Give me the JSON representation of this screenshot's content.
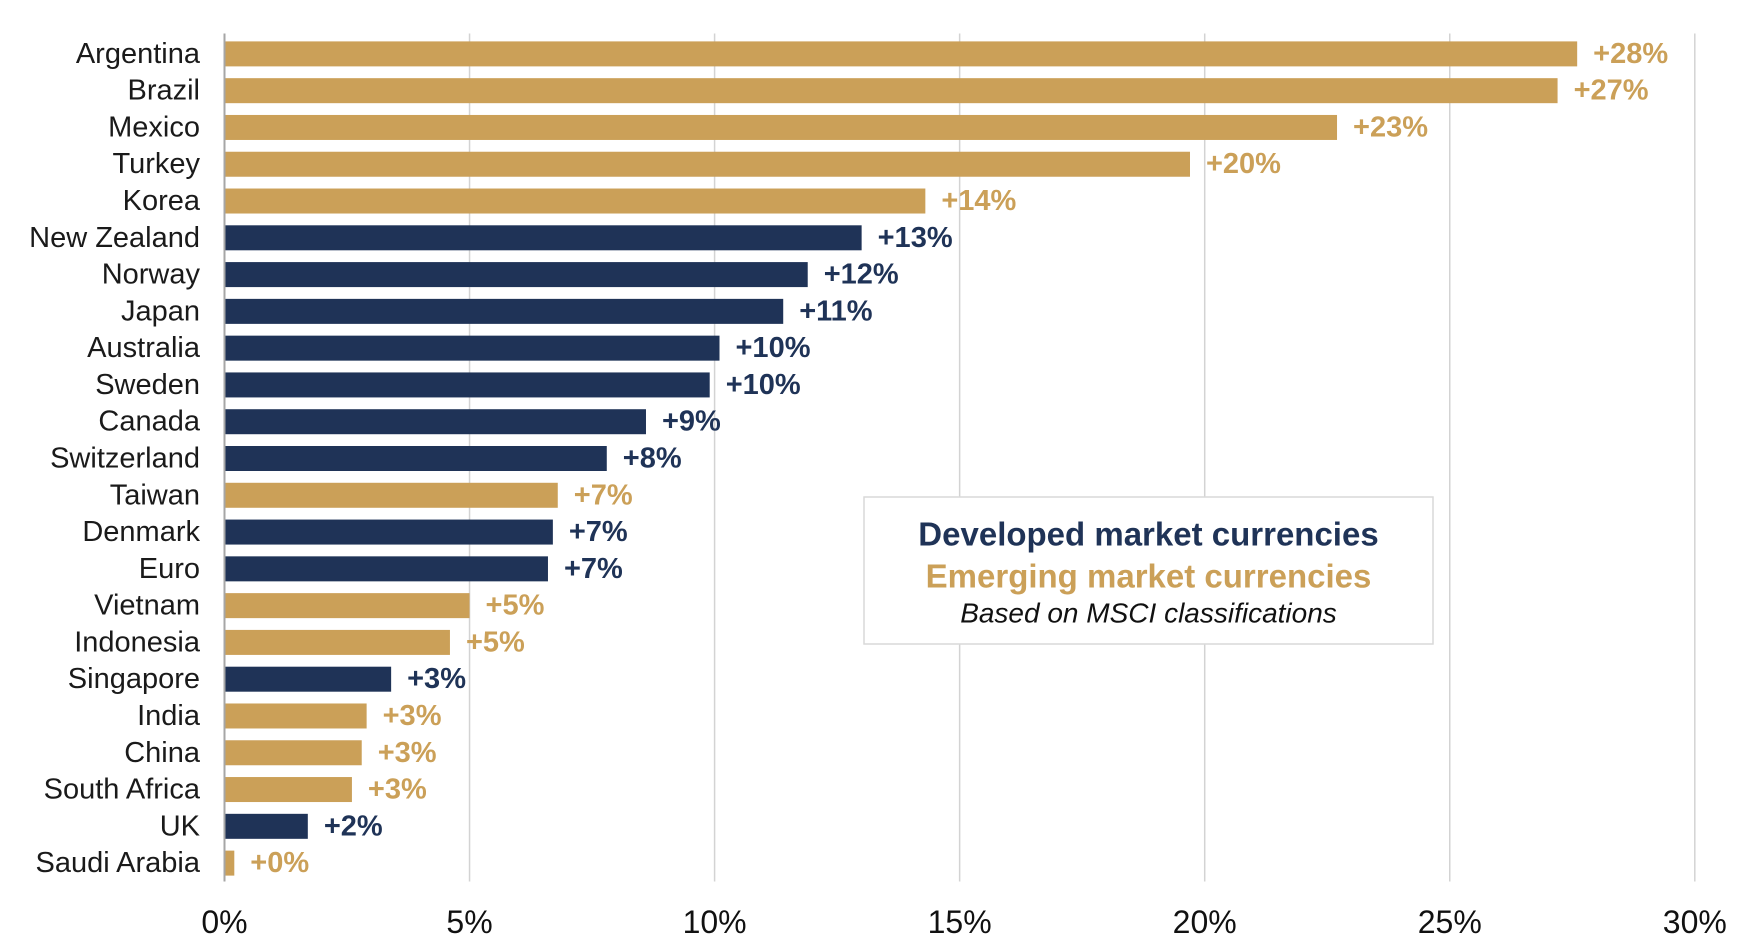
{
  "chart_data": {
    "type": "bar",
    "categories": [
      "Argentina",
      "Brazil",
      "Mexico",
      "Turkey",
      "Korea",
      "New Zealand",
      "Norway",
      "Japan",
      "Australia",
      "Sweden",
      "Canada",
      "Switzerland",
      "Taiwan",
      "Denmark",
      "Euro",
      "Vietnam",
      "Indonesia",
      "Singapore",
      "India",
      "China",
      "South Africa",
      "UK",
      "Saudi Arabia"
    ],
    "values": [
      27.6,
      27.2,
      22.7,
      19.7,
      14.3,
      13.0,
      11.9,
      11.4,
      10.1,
      9.9,
      8.6,
      7.8,
      6.8,
      6.7,
      6.6,
      5.0,
      4.6,
      3.4,
      2.9,
      2.8,
      2.6,
      1.7,
      0.2
    ],
    "value_labels": [
      "+28%",
      "+27%",
      "+23%",
      "+20%",
      "+14%",
      "+13%",
      "+12%",
      "+11%",
      "+10%",
      "+10%",
      "+9%",
      "+8%",
      "+7%",
      "+7%",
      "+7%",
      "+5%",
      "+5%",
      "+3%",
      "+3%",
      "+3%",
      "+3%",
      "+2%",
      "+0%"
    ],
    "group": [
      1,
      1,
      1,
      1,
      1,
      0,
      0,
      0,
      0,
      0,
      0,
      0,
      1,
      0,
      0,
      1,
      1,
      0,
      1,
      1,
      1,
      0,
      1
    ],
    "xlim": [
      0,
      30
    ],
    "x_ticks": [
      0,
      5,
      10,
      15,
      20,
      25,
      30
    ],
    "x_tick_labels": [
      "0%",
      "5%",
      "10%",
      "15%",
      "20%",
      "25%",
      "30%"
    ],
    "grid": true,
    "legend": {
      "position": "center-right",
      "entries": [
        {
          "name": "Developed market currencies",
          "color": "#1f3357"
        },
        {
          "name": "Emerging market currencies",
          "color": "#cba058"
        }
      ],
      "note": "Based on MSCI classifications"
    }
  },
  "colors": {
    "grid": "#d3d3d3",
    "axis": "#a6a6a6",
    "label": "#1a1a1a"
  }
}
